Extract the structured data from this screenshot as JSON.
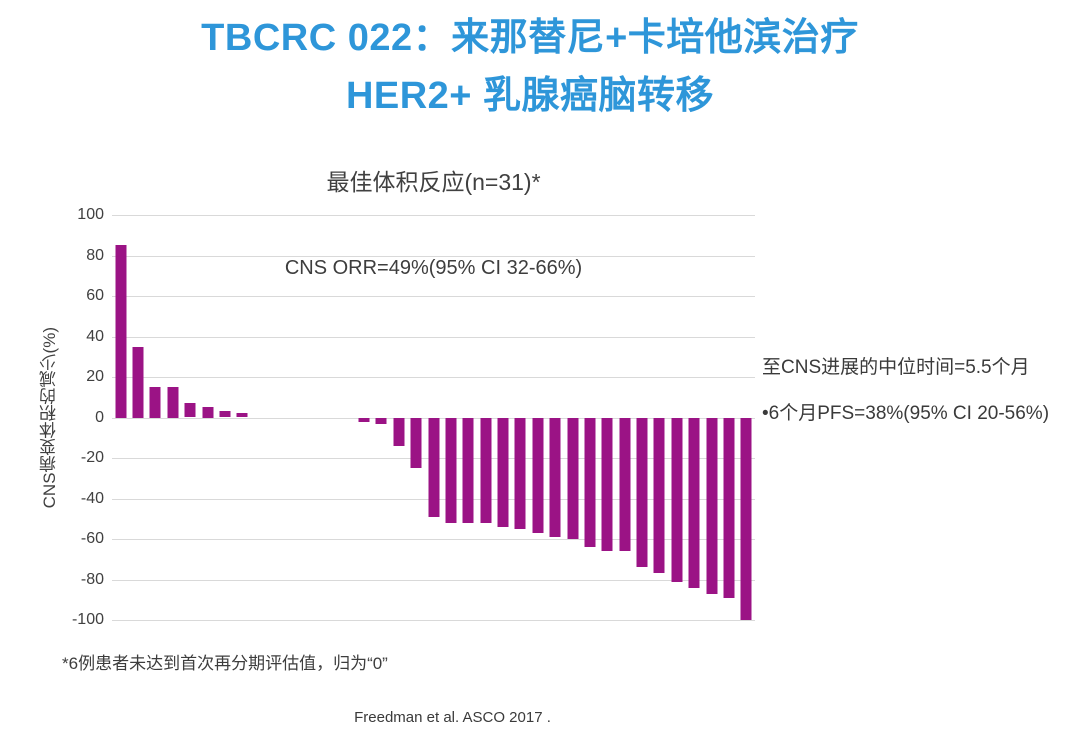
{
  "slide": {
    "title_line1": "TBCRC 022：来那替尼+卡培他滨治疗",
    "title_line2": "HER2+ 乳腺癌脑转移",
    "title_color": "#2E96D9",
    "footnote": "*6例患者未达到首次再分期评估值，归为“0”",
    "citation": "Freedman et al. ASCO 2017 ."
  },
  "side_notes": {
    "median_time": "至CNS进展的中位时间=5.5个月",
    "pfs": "•6个月PFS=38%(95% CI 20-56%)"
  },
  "chart_data": {
    "type": "bar",
    "subtype": "waterfall",
    "title": "最佳体积反应(n=31)*",
    "annotation": "CNS ORR=49%(95% CI 32-66%)",
    "ylabel": "CNS病变体积的减少(%)",
    "ylim": [
      -100,
      100
    ],
    "yticks": [
      100,
      80,
      60,
      40,
      20,
      0,
      -20,
      -40,
      -60,
      -80,
      -100
    ],
    "grid": true,
    "legend": "none",
    "bar_color": "#9B1385",
    "gridline_color": "#d9d9d9",
    "values": [
      85,
      35,
      15,
      15,
      7,
      5,
      3,
      2,
      0,
      0,
      0,
      0,
      0,
      0,
      -2,
      -3,
      -14,
      -25,
      -49,
      -52,
      -52,
      -52,
      -54,
      -55,
      -57,
      -59,
      -60,
      -64,
      -66,
      -66,
      -74,
      -77,
      -81,
      -84,
      -87,
      -89,
      -100
    ]
  }
}
